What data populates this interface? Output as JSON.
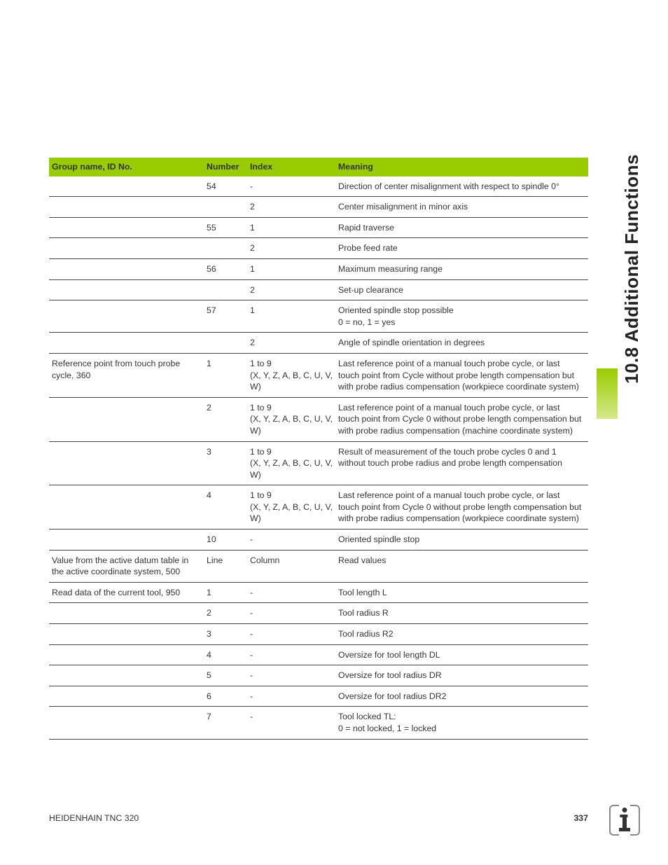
{
  "side_title": "10.8 Additional Functions",
  "footer": {
    "left": "HEIDENHAIN TNC 320",
    "page": "337"
  },
  "table": {
    "header_bg": "#99cc00",
    "columns": [
      "Group name, ID No.",
      "Number",
      "Index",
      "Meaning"
    ],
    "rows": [
      {
        "group": "",
        "number": "54",
        "index": "-",
        "meaning": "Direction of center misalignment with respect to spindle 0°"
      },
      {
        "group": "",
        "number": "",
        "index": "2",
        "meaning": "Center misalignment in minor axis"
      },
      {
        "group": "",
        "number": "55",
        "index": "1",
        "meaning": "Rapid traverse"
      },
      {
        "group": "",
        "number": "",
        "index": "2",
        "meaning": "Probe feed rate"
      },
      {
        "group": "",
        "number": "56",
        "index": "1",
        "meaning": "Maximum measuring range"
      },
      {
        "group": "",
        "number": "",
        "index": "2",
        "meaning": "Set-up clearance"
      },
      {
        "group": "",
        "number": "57",
        "index": "1",
        "meaning": "Oriented spindle stop possible\n0 = no, 1 = yes"
      },
      {
        "group": "",
        "number": "",
        "index": "2",
        "meaning": "Angle of spindle orientation in degrees"
      },
      {
        "group": "Reference point from touch probe cycle, 360",
        "number": "1",
        "index": "1 to 9\n(X, Y, Z, A, B, C, U, V, W)",
        "meaning": "Last reference point of a manual touch probe cycle, or last touch point from Cycle without probe length compensation but with probe radius compensation (workpiece coordinate system)"
      },
      {
        "group": "",
        "number": "2",
        "index": "1 to 9\n(X, Y, Z, A, B, C, U, V, W)",
        "meaning": "Last reference point of a manual touch probe cycle, or last touch point from Cycle 0 without probe length compensation but with probe radius compensation (machine coordinate system)"
      },
      {
        "group": "",
        "number": "3",
        "index": "1 to 9\n(X, Y, Z, A, B, C, U, V, W)",
        "meaning": "Result of measurement of the touch probe cycles 0 and 1 without touch probe radius and probe length compensation"
      },
      {
        "group": "",
        "number": "4",
        "index": "1 to 9\n(X, Y, Z, A, B, C, U, V, W)",
        "meaning": "Last reference point of a manual touch probe cycle, or last touch point from Cycle 0 without probe length compensation but with probe radius compensation (workpiece coordinate system)"
      },
      {
        "group": "",
        "number": "10",
        "index": "-",
        "meaning": "Oriented spindle stop"
      },
      {
        "group": "Value from the active datum table in the active coordinate system, 500",
        "number": "Line",
        "index": "Column",
        "meaning": "Read values"
      },
      {
        "group": "Read data of the current tool, 950",
        "number": "1",
        "index": "-",
        "meaning": "Tool length L"
      },
      {
        "group": "",
        "number": "2",
        "index": "-",
        "meaning": "Tool radius R"
      },
      {
        "group": "",
        "number": "3",
        "index": "-",
        "meaning": "Tool radius R2"
      },
      {
        "group": "",
        "number": "4",
        "index": "-",
        "meaning": "Oversize for tool length DL"
      },
      {
        "group": "",
        "number": "5",
        "index": "-",
        "meaning": "Oversize for tool radius DR"
      },
      {
        "group": "",
        "number": "6",
        "index": "-",
        "meaning": "Oversize for tool radius DR2"
      },
      {
        "group": "",
        "number": "7",
        "index": "-",
        "meaning": "Tool locked TL:\n0 = not locked, 1 = locked"
      }
    ]
  }
}
